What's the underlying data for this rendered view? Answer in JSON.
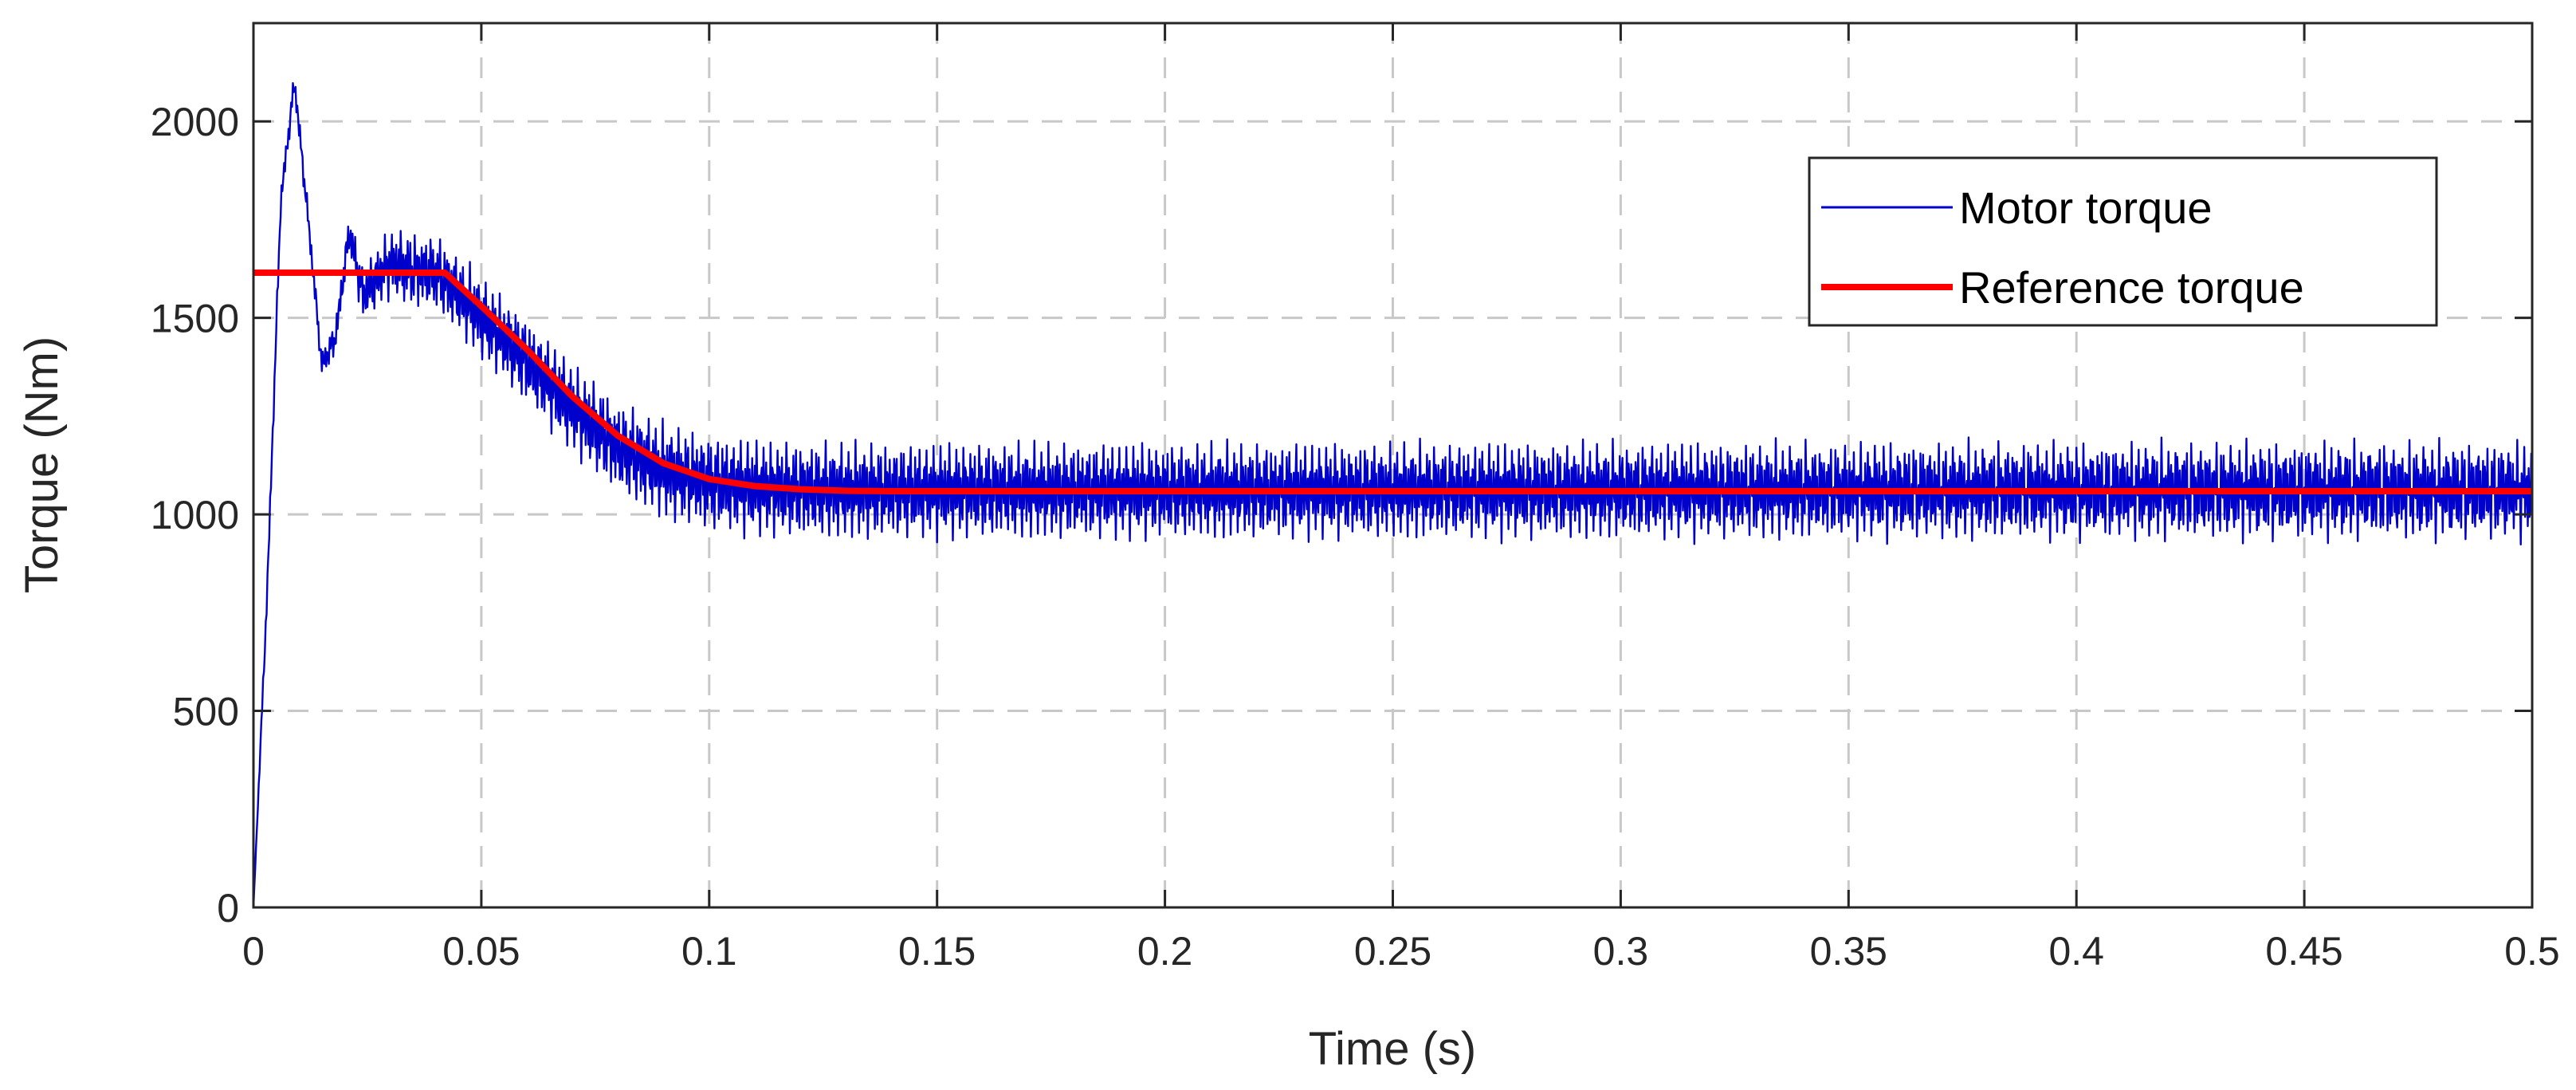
{
  "chart_data": {
    "type": "line",
    "title": "",
    "xlabel": "Time (s)",
    "ylabel": "Torque (Nm)",
    "xlim": [
      0,
      0.5
    ],
    "ylim": [
      0,
      2250
    ],
    "xticks": [
      0,
      0.05,
      0.1,
      0.15,
      0.2,
      0.25,
      0.3,
      0.35,
      0.4,
      0.45,
      0.5
    ],
    "xtick_labels": [
      "0",
      "0.05",
      "0.1",
      "0.15",
      "0.2",
      "0.25",
      "0.3",
      "0.35",
      "0.4",
      "0.45",
      "0.5"
    ],
    "yticks": [
      0,
      500,
      1000,
      1500,
      2000
    ],
    "ytick_labels": [
      "0",
      "500",
      "1000",
      "1500",
      "2000"
    ],
    "grid": true,
    "legend_position": "top-right",
    "series": [
      {
        "name": "Motor torque",
        "color": "#0000cc",
        "style": "noisy",
        "envelope_x": [
          0,
          0.003,
          0.006,
          0.009,
          0.012,
          0.015,
          0.018,
          0.021,
          0.024,
          0.027,
          0.03,
          0.035,
          0.04,
          0.045,
          0.05,
          0.06,
          0.07,
          0.08,
          0.09,
          0.1,
          0.11,
          0.12,
          0.13,
          0.15,
          0.2,
          0.5
        ],
        "envelope_y": [
          0,
          800,
          1800,
          2100,
          1750,
          1380,
          1450,
          1720,
          1560,
          1600,
          1640,
          1620,
          1615,
          1560,
          1500,
          1390,
          1270,
          1170,
          1110,
          1080,
          1068,
          1062,
          1060,
          1060,
          1060,
          1060
        ],
        "ripple_amplitude": [
          0,
          40,
          40,
          40,
          40,
          40,
          50,
          60,
          80,
          90,
          100,
          110,
          110,
          115,
          120,
          125,
          130,
          135,
          140,
          140,
          140,
          140,
          140,
          140,
          140,
          140
        ]
      },
      {
        "name": "Reference torque",
        "color": "#ff0000",
        "style": "smooth",
        "x": [
          0,
          0.042,
          0.05,
          0.06,
          0.07,
          0.08,
          0.09,
          0.1,
          0.11,
          0.12,
          0.13,
          0.14,
          0.15,
          0.2,
          0.5
        ],
        "y": [
          1615,
          1615,
          1530,
          1420,
          1300,
          1200,
          1130,
          1090,
          1072,
          1064,
          1060,
          1059,
          1059,
          1059,
          1059
        ]
      }
    ]
  }
}
